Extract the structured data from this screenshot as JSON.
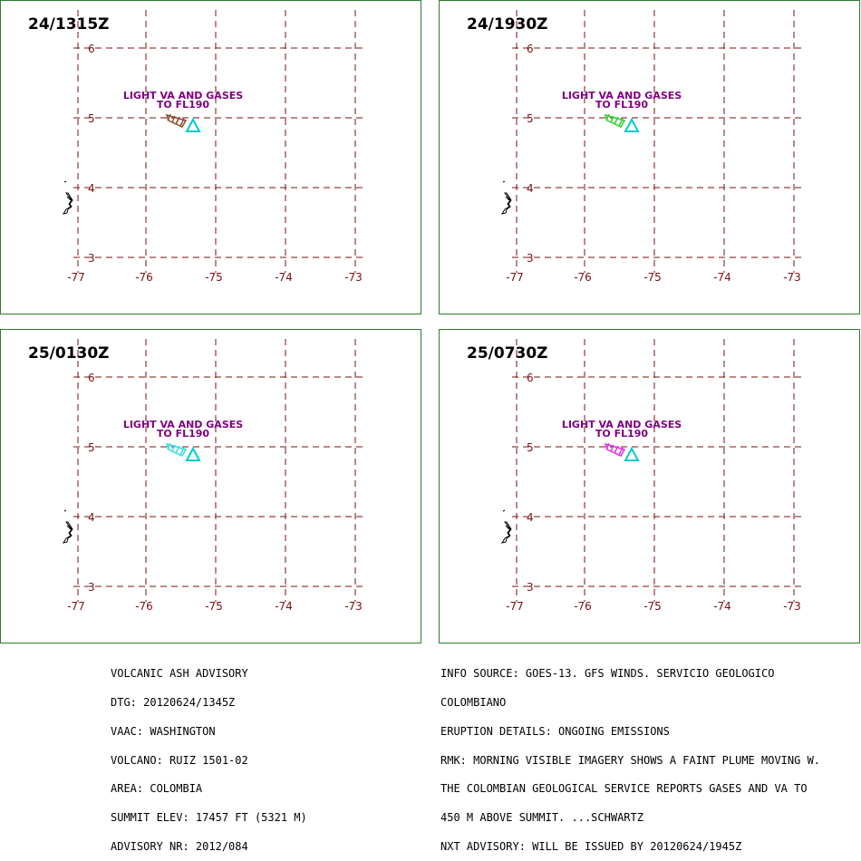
{
  "panels": [
    {
      "time": "24/1315Z",
      "plume_color": "#8b4a2b",
      "plume_level": "light"
    },
    {
      "time": "24/1930Z",
      "plume_color": "#33cc33",
      "plume_level": "light"
    },
    {
      "time": "25/0130Z",
      "plume_color": "#33dddd",
      "plume_level": "light"
    },
    {
      "time": "25/0730Z",
      "plume_color": "#dd33dd",
      "plume_level": "light"
    }
  ],
  "map": {
    "lon_ticks": [
      "-77",
      "-76",
      "-75",
      "-74",
      "-73"
    ],
    "lat_ticks": [
      "6",
      "5",
      "4",
      "3"
    ],
    "grid_color": "#7a1010",
    "label_color": "#7a1010",
    "annotation_color": "#800080",
    "volcano_color": "#00cccc"
  },
  "annotation": {
    "line1": "LIGHT VA AND GASES",
    "line2": "TO FL190"
  },
  "footer_left": [
    "VOLCANIC ASH ADVISORY",
    "DTG: 20120624/1345Z",
    "VAAC: WASHINGTON",
    "VOLCANO: RUIZ 1501-02",
    "AREA: COLOMBIA",
    "SUMMIT ELEV: 17457 FT (5321 M)",
    "ADVISORY NR: 2012/084"
  ],
  "footer_right": [
    "INFO SOURCE: GOES-13. GFS WINDS. SERVICIO GEOLOGICO",
    "COLOMBIANO",
    "ERUPTION DETAILS: ONGOING EMISSIONS",
    "RMK: MORNING VISIBLE IMAGERY SHOWS A FAINT PLUME MOVING W.",
    "THE COLOMBIAN GEOLOGICAL SERVICE REPORTS GASES AND VA TO",
    "450 M ABOVE SUMMIT. ...SCHWARTZ",
    "NXT ADVISORY: WILL BE ISSUED BY 20120624/1945Z"
  ]
}
